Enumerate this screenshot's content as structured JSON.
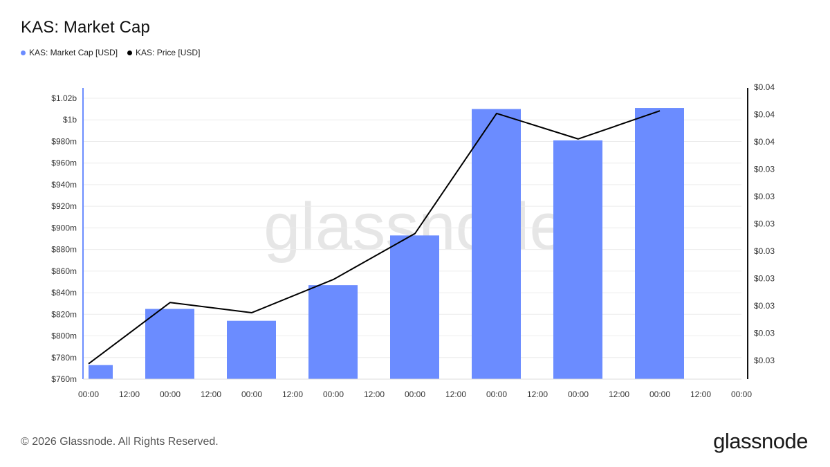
{
  "title": "KAS: Market Cap",
  "legend": [
    {
      "label": "KAS: Market Cap [USD]",
      "color": "#6b8cff"
    },
    {
      "label": "KAS: Price [USD]",
      "color": "#000000"
    }
  ],
  "watermark": "glassnode",
  "footer": {
    "copyright": "© 2026 Glassnode. All Rights Reserved.",
    "logo": "glassnode"
  },
  "chart_data": {
    "type": "bar",
    "x_ticks": [
      "00:00",
      "12:00",
      "00:00",
      "12:00",
      "00:00",
      "12:00",
      "00:00",
      "12:00",
      "00:00",
      "12:00",
      "00:00",
      "12:00",
      "00:00",
      "12:00",
      "00:00",
      "12:00",
      "00:00"
    ],
    "y_left": {
      "ticks": [
        "$760m",
        "$780m",
        "$800m",
        "$820m",
        "$840m",
        "$860m",
        "$880m",
        "$900m",
        "$920m",
        "$940m",
        "$960m",
        "$980m",
        "$1b",
        "$1.02b"
      ],
      "min": 760,
      "max": 1020,
      "step": 20,
      "unit": "m"
    },
    "y_right": {
      "ticks": [
        "$0.03",
        "$0.03",
        "$0.03",
        "$0.03",
        "$0.03",
        "$0.03",
        "$0.03",
        "$0.03",
        "$0.04",
        "$0.04",
        "$0.04"
      ],
      "min": 0.0286,
      "max": 0.04
    },
    "series": [
      {
        "name": "KAS: Market Cap [USD]",
        "type": "bar",
        "color": "#6b8cff",
        "x_index": [
          0.5,
          2,
          4,
          6,
          8,
          10,
          12,
          14
        ],
        "values": [
          773,
          825,
          814,
          847,
          893,
          1010,
          981,
          1011
        ]
      },
      {
        "name": "KAS: Price [USD]",
        "type": "line",
        "color": "#000000",
        "x_index": [
          0,
          2,
          4,
          6,
          8,
          10,
          12,
          14
        ],
        "values": [
          0.0292,
          0.0316,
          0.0312,
          0.0325,
          0.0343,
          0.039,
          0.038,
          0.0391
        ]
      }
    ],
    "grid": true
  }
}
